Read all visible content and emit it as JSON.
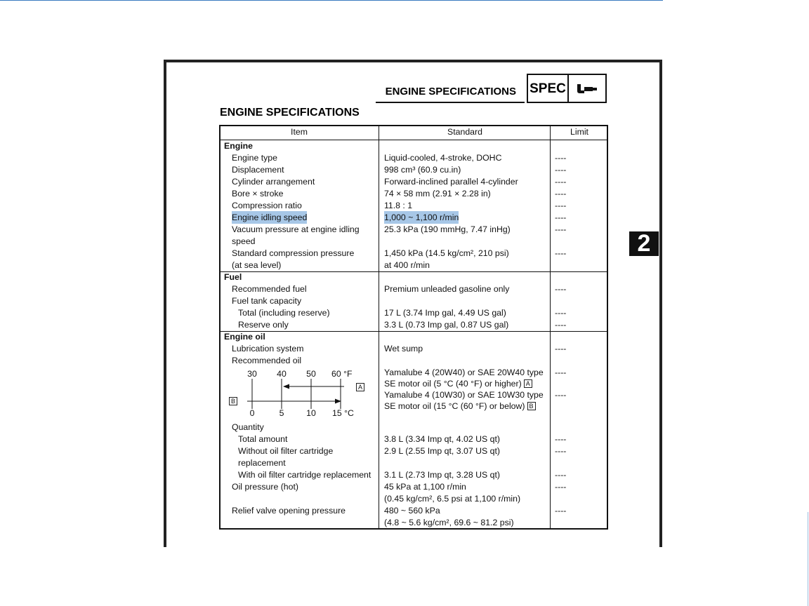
{
  "header": {
    "title": "ENGINE SPECIFICATIONS",
    "badge": "SPEC"
  },
  "side_tab": "2",
  "section_title": "ENGINE SPECIFICATIONS",
  "table": {
    "columns": [
      "Item",
      "Standard",
      "Limit"
    ],
    "groups": [
      {
        "name": "Engine",
        "rows": [
          {
            "item": [
              "Engine type"
            ],
            "standard": [
              "Liquid-cooled, 4-stroke, DOHC"
            ],
            "limit": "----"
          },
          {
            "item": [
              "Displacement"
            ],
            "standard": [
              "998 cm³ (60.9 cu.in)"
            ],
            "limit": "----"
          },
          {
            "item": [
              "Cylinder arrangement"
            ],
            "standard": [
              "Forward-inclined parallel 4-cylinder"
            ],
            "limit": "----"
          },
          {
            "item": [
              "Bore × stroke"
            ],
            "standard": [
              "74 × 58 mm (2.91 × 2.28 in)"
            ],
            "limit": "----"
          },
          {
            "item": [
              "Compression ratio"
            ],
            "standard": [
              "11.8 : 1"
            ],
            "limit": "----"
          },
          {
            "item": [
              "Engine idling speed"
            ],
            "standard": [
              "1,000 ~ 1,100 r/min"
            ],
            "limit": "----",
            "selected": true
          },
          {
            "item": [
              "Vacuum pressure at engine idling",
              "speed"
            ],
            "standard": [
              "25.3 kPa (190 mmHg, 7.47 inHg)"
            ],
            "limit": "----"
          },
          {
            "item": [
              "Standard compression pressure",
              "(at sea level)"
            ],
            "standard": [
              "1,450 kPa (14.5 kg/cm², 210 psi)",
              "at 400 r/min"
            ],
            "limit": "----"
          }
        ]
      },
      {
        "name": "Fuel",
        "rows": [
          {
            "item": [
              "Recommended fuel"
            ],
            "standard": [
              "Premium unleaded gasoline only"
            ],
            "limit": "----"
          },
          {
            "item": [
              "Fuel tank capacity"
            ],
            "rows": [
              {
                "item": [
                  "Total (including reserve)"
                ],
                "standard": [
                  "17 L (3.74 Imp gal, 4.49 US gal)"
                ],
                "limit": "----"
              },
              {
                "item": [
                  "Reserve only"
                ],
                "standard": [
                  "3.3 L (0.73 Imp gal, 0.87 US gal)"
                ],
                "limit": "----"
              }
            ]
          }
        ]
      },
      {
        "name": "Engine oil",
        "rows": [
          {
            "item": [
              "Lubrication system"
            ],
            "standard": [
              "Wet sump"
            ],
            "limit": "----"
          },
          {
            "item": [
              "Recommended oil"
            ],
            "chart": {
              "fahrenheit": [
                "30",
                "40",
                "50",
                "60 °F"
              ],
              "celsius": [
                "0",
                "5",
                "10",
                "15 °C"
              ],
              "markers": [
                "A",
                "B"
              ]
            },
            "options": [
              {
                "standard": [
                  "Yamalube 4 (20W40) or SAE 20W40 type",
                  "SE motor oil (5 °C (40 °F) or higher)"
                ],
                "marker": "A",
                "limit": "----"
              },
              {
                "standard": [
                  "Yamalube 4 (10W30) or SAE 10W30 type",
                  "SE motor oil (15 °C (60 °F) or below)"
                ],
                "marker": "B",
                "limit": "----"
              }
            ]
          },
          {
            "item": [
              "Quantity"
            ],
            "rows": [
              {
                "item": [
                  "Total amount"
                ],
                "standard": [
                  "3.8 L (3.34 Imp qt, 4.02 US qt)"
                ],
                "limit": "----"
              },
              {
                "item": [
                  "Without oil filter cartridge",
                  "replacement"
                ],
                "standard": [
                  "2.9 L (2.55 Imp qt, 3.07 US qt)"
                ],
                "limit": "----"
              },
              {
                "item": [
                  "With oil filter cartridge replacement"
                ],
                "standard": [
                  "3.1 L (2.73 Imp qt, 3.28 US qt)"
                ],
                "limit": "----"
              }
            ]
          },
          {
            "item": [
              "Oil pressure (hot)"
            ],
            "standard": [
              "45 kPa at 1,100 r/min",
              "(0.45 kg/cm², 6.5 psi at 1,100 r/min)"
            ],
            "limit": "----"
          },
          {
            "item": [
              "Relief valve opening pressure"
            ],
            "standard": [
              "480 ~ 560 kPa",
              "(4.8 ~ 5.6 kg/cm², 69.6 ~ 81.2 psi)"
            ],
            "limit": "----"
          }
        ]
      }
    ]
  }
}
